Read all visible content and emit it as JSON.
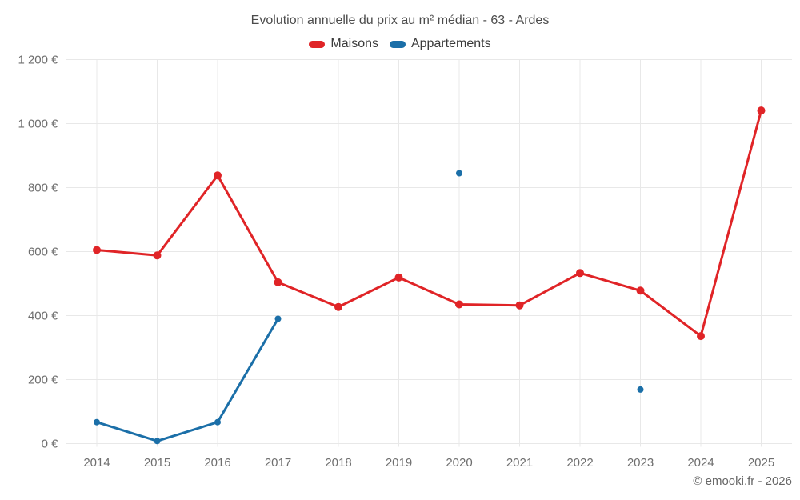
{
  "title": "Evolution annuelle du prix au m² médian - 63 - Ardes",
  "footer": "© emooki.fr - 2026",
  "legend": [
    {
      "label": "Maisons",
      "color": "#e02427"
    },
    {
      "label": "Appartements",
      "color": "#1b6fa8"
    }
  ],
  "colors": {
    "background": "#ffffff",
    "grid": "#e8e8e8",
    "axis_text": "#6e6e6e",
    "title_text": "#4c4c4c",
    "legend_text": "#3b3b3b",
    "footer_text": "#666666",
    "maisons": "#e02427",
    "appartements": "#1b6fa8"
  },
  "chart_data": {
    "type": "line",
    "title": "Evolution annuelle du prix au m² médian - 63 - Ardes",
    "xlabel": "",
    "ylabel": "",
    "categories": [
      "2014",
      "2015",
      "2016",
      "2017",
      "2018",
      "2019",
      "2020",
      "2021",
      "2022",
      "2023",
      "2024",
      "2025"
    ],
    "series": [
      {
        "name": "Maisons",
        "color": "#e02427",
        "marker_radius": 5,
        "values": [
          605,
          588,
          838,
          504,
          427,
          519,
          435,
          432,
          533,
          478,
          336,
          1041
        ]
      },
      {
        "name": "Appartements",
        "color": "#1b6fa8",
        "marker_radius": 4,
        "values": [
          67,
          8,
          67,
          390,
          null,
          null,
          845,
          null,
          null,
          169,
          null,
          null
        ]
      }
    ],
    "ylim": [
      0,
      1200
    ],
    "y_ticks": [
      {
        "value": 0,
        "label": "0 €"
      },
      {
        "value": 200,
        "label": "200 €"
      },
      {
        "value": 400,
        "label": "400 €"
      },
      {
        "value": 600,
        "label": "600 €"
      },
      {
        "value": 800,
        "label": "800 €"
      },
      {
        "value": 1000,
        "label": "1 000 €"
      },
      {
        "value": 1200,
        "label": "1 200 €"
      }
    ],
    "grid": true,
    "legend_position": "top"
  }
}
